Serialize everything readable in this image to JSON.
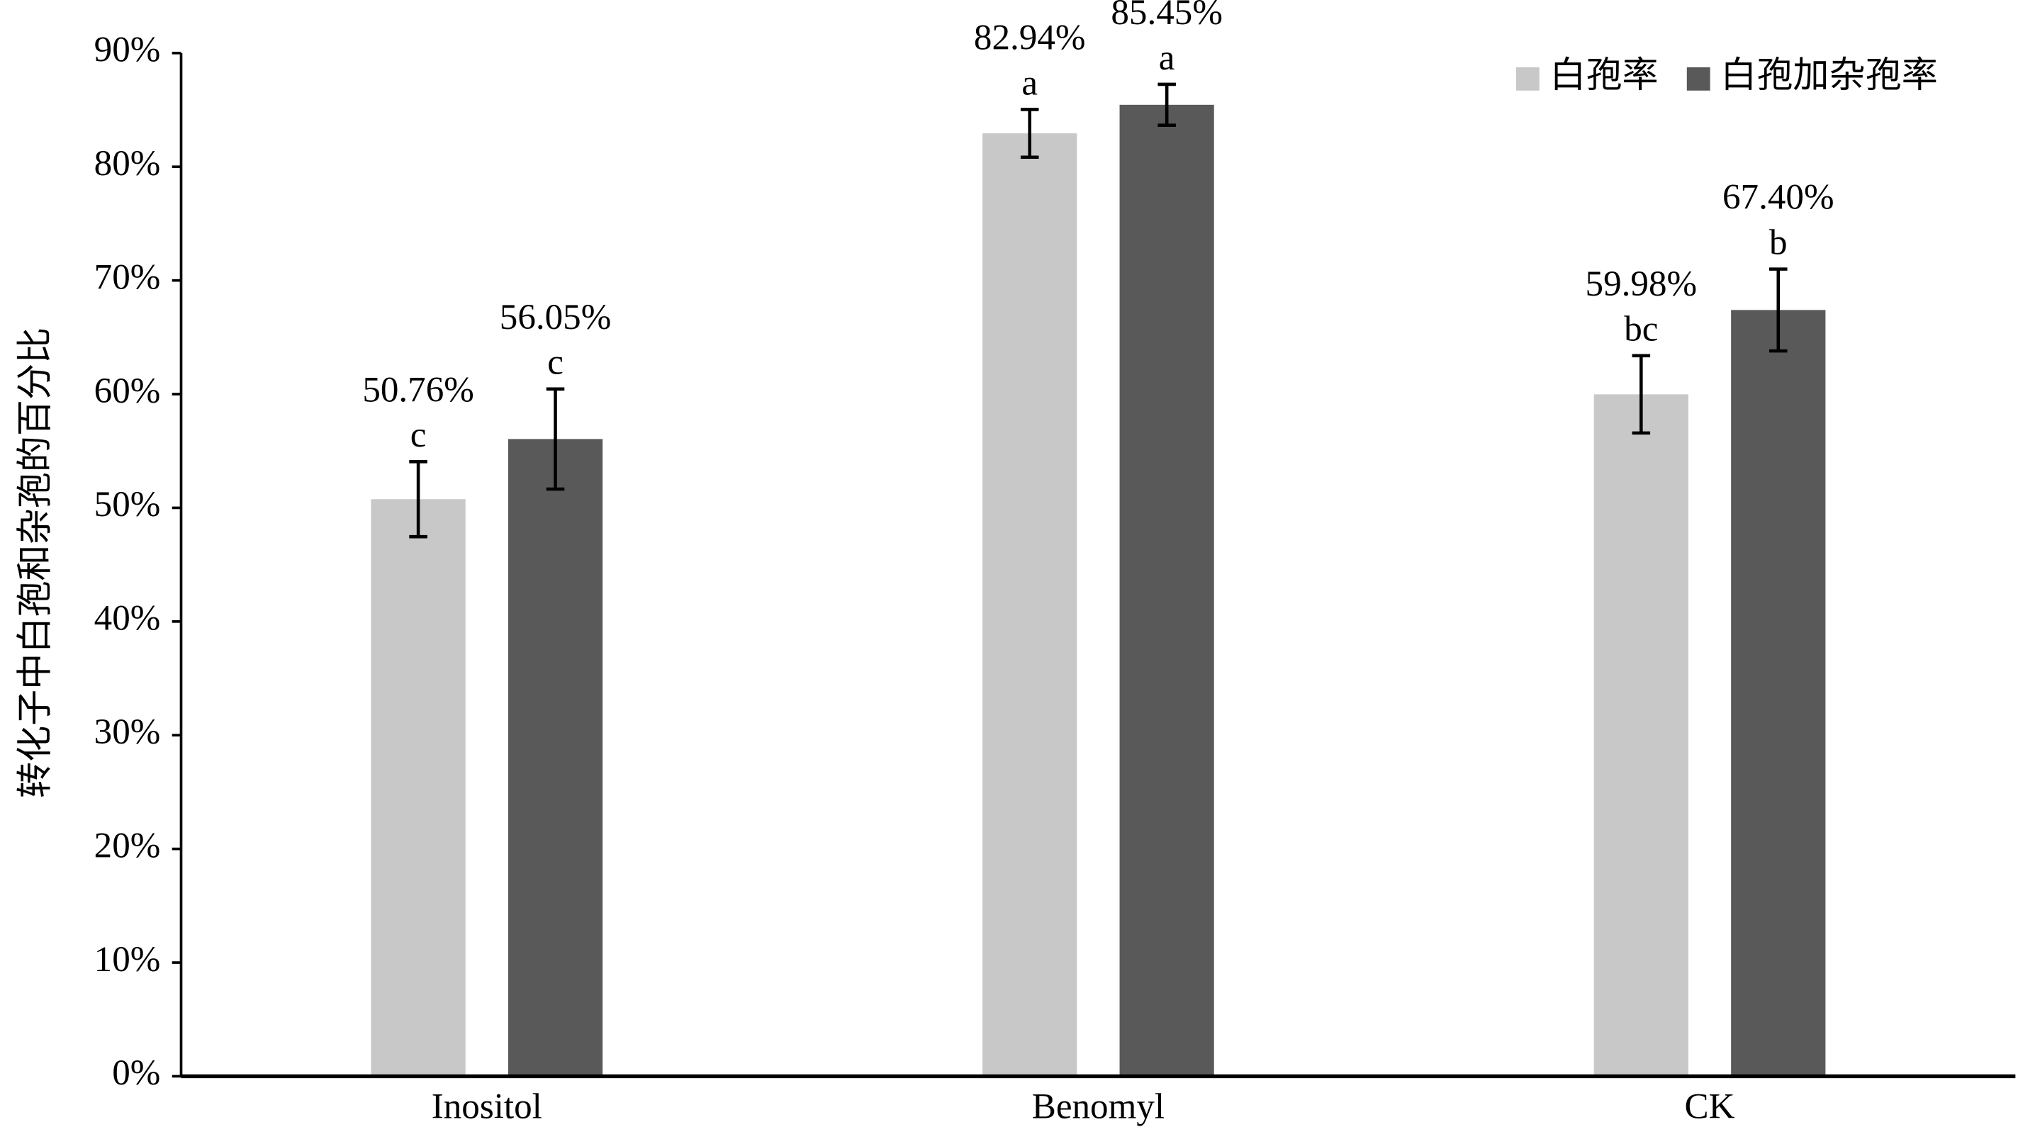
{
  "chart_data": {
    "type": "bar",
    "y_label": "转化子中白孢和杂孢的百分比",
    "categories": [
      "Inositol",
      "Benomyl",
      "CK"
    ],
    "series": [
      {
        "name": "白孢率",
        "color": "#c8c8c8",
        "values": [
          50.76,
          82.94,
          59.98
        ],
        "value_labels": [
          "50.76%",
          "82.94%",
          "59.98%"
        ],
        "errors": [
          3.3,
          2.1,
          3.4
        ],
        "sig_labels": [
          "c",
          "a",
          "bc"
        ]
      },
      {
        "name": "白孢加杂孢率",
        "color": "#595959",
        "values": [
          56.05,
          85.45,
          67.4
        ],
        "value_labels": [
          "56.05%",
          "85.45%",
          "67.40%"
        ],
        "errors": [
          4.4,
          1.8,
          3.6
        ],
        "sig_labels": [
          "c",
          "a",
          "b"
        ]
      }
    ],
    "ylim": [
      0,
      90
    ],
    "yticks": [
      {
        "value": 0,
        "label": "0%"
      },
      {
        "value": 10,
        "label": "10%"
      },
      {
        "value": 20,
        "label": "20%"
      },
      {
        "value": 30,
        "label": "30%"
      },
      {
        "value": 40,
        "label": "40%"
      },
      {
        "value": 50,
        "label": "50%"
      },
      {
        "value": 60,
        "label": "60%"
      },
      {
        "value": 70,
        "label": "70%"
      },
      {
        "value": 80,
        "label": "80%"
      },
      {
        "value": 90,
        "label": "90%"
      }
    ],
    "grid": false,
    "legend": "top-right"
  }
}
